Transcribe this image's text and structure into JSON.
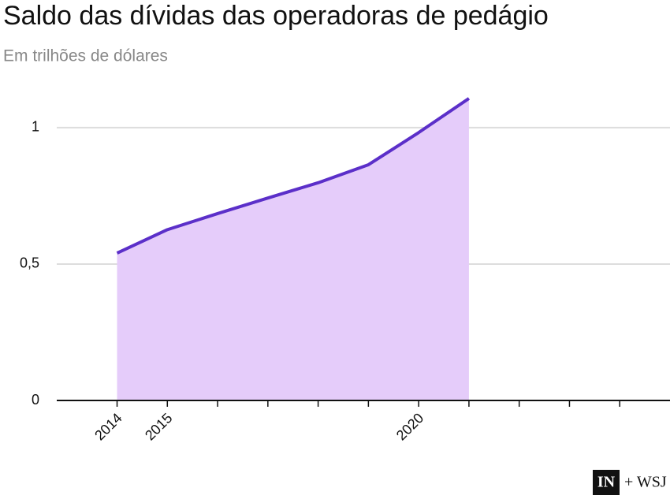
{
  "chart_data": {
    "type": "area",
    "title": "Saldo das dívidas das operadoras de pedágio",
    "subtitle": "Em trilhões de dólares",
    "x": [
      2014,
      2015,
      2016,
      2017,
      2018,
      2019,
      2020,
      2021
    ],
    "series": [
      {
        "values": [
          0.54,
          0.626,
          0.685,
          0.742,
          0.798,
          0.864,
          0.982,
          1.107
        ],
        "color": "#5b2fc9",
        "fill": "#e5ccfa"
      }
    ],
    "xlim": [
      2012.8,
      2025
    ],
    "xticks": [
      2014,
      2015,
      2020
    ],
    "xminorticks": [
      2016,
      2017,
      2018,
      2019,
      2021,
      2022,
      2023,
      2024
    ],
    "ylim": [
      0,
      1.15
    ],
    "yticks": [
      0,
      {
        "value": 0.5,
        "label": "0,5"
      },
      1
    ],
    "grid": true
  },
  "footer": {
    "logo": "IN",
    "partner": "+ WSJ"
  }
}
